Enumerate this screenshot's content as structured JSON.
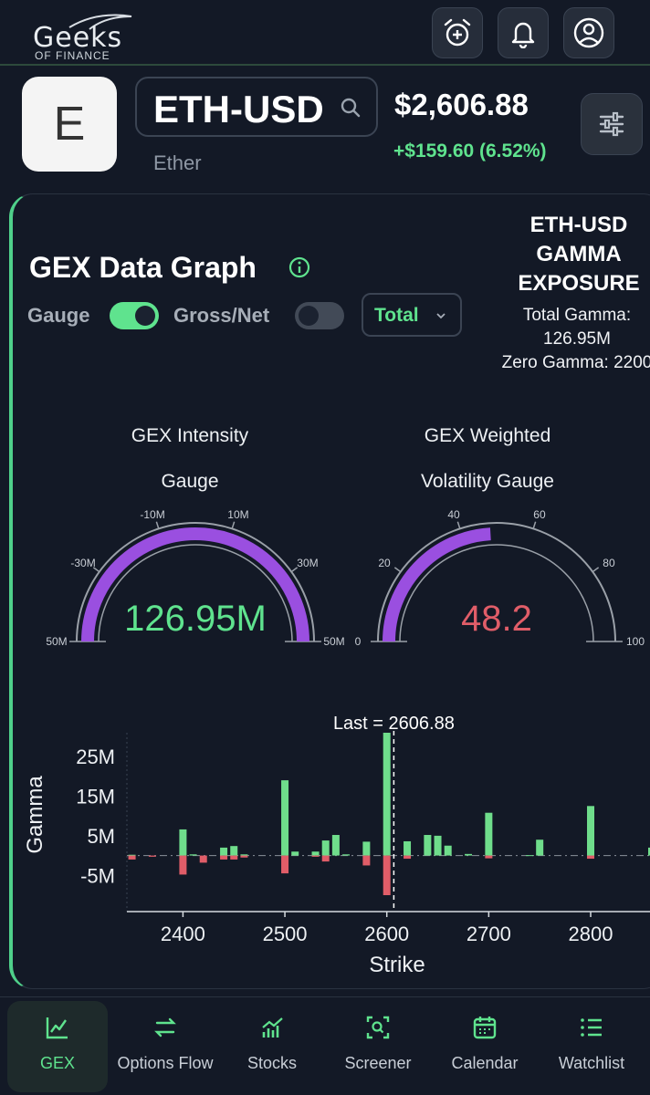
{
  "header": {
    "logo_text": "Geeks",
    "logo_sub": "OF FINANCE",
    "icons": [
      "alarm-add-icon",
      "bell-icon",
      "user-icon"
    ]
  },
  "ticker": {
    "logo_letter": "E",
    "symbol": "ETH-USD",
    "name": "Ether",
    "price": "$2,606.88",
    "change": "+$159.60 (6.52%)"
  },
  "gex": {
    "title": "GEX Data Graph",
    "gauge_label": "Gauge",
    "gauge_on": true,
    "gross_net_label": "Gross/Net",
    "gross_net_on": false,
    "select_value": "Total",
    "exposure_title_1": "ETH-USD",
    "exposure_title_2": "GAMMA",
    "exposure_title_3": "EXPOSURE",
    "total_gamma_label": "Total Gamma:",
    "total_gamma_value": "126.95M",
    "zero_gamma": "Zero Gamma: 2200"
  },
  "gauges": [
    {
      "title_1": "GEX Intensity",
      "title_2": "Gauge",
      "value_text": "126.95M",
      "value_color": "#5fe38e",
      "fill_fraction": 1.0,
      "ticks": [
        "50M",
        "-30M",
        "-10M",
        "10M",
        "30M",
        "50M"
      ]
    },
    {
      "title_1": "GEX Weighted",
      "title_2": "Volatility Gauge",
      "value_text": "48.2",
      "value_color": "#e05d68",
      "fill_fraction": 0.482,
      "ticks": [
        "0",
        "20",
        "40",
        "60",
        "80",
        "100"
      ]
    }
  ],
  "chart_data": {
    "type": "bar",
    "title": "",
    "xlabel": "Strike",
    "ylabel": "Gamma",
    "annotation": "Last = 2606.88",
    "last_price": 2606.88,
    "xlim": [
      2345,
      2860
    ],
    "ylim": [
      -10,
      31
    ],
    "x_ticks": [
      "2400",
      "2500",
      "2600",
      "2700",
      "2800"
    ],
    "y_ticks": [
      "25M",
      "15M",
      "5M",
      "-5M"
    ],
    "y_tick_values": [
      25,
      15,
      5,
      -5
    ],
    "colors": {
      "positive": "#6fdd8b",
      "negative": "#e05d68"
    },
    "series": [
      {
        "name": "Positive gamma",
        "x": [
          2350,
          2400,
          2410,
          2440,
          2450,
          2460,
          2500,
          2510,
          2530,
          2540,
          2550,
          2560,
          2580,
          2600,
          2620,
          2640,
          2650,
          2660,
          2680,
          2700,
          2740,
          2750,
          2800,
          2860
        ],
        "values": [
          0.2,
          6.6,
          0.3,
          2.0,
          2.4,
          0.3,
          19.0,
          1.0,
          1.0,
          3.8,
          5.2,
          0.3,
          3.5,
          31.0,
          3.6,
          5.2,
          5.0,
          2.5,
          0.4,
          10.8,
          0.1,
          4.0,
          12.5,
          2.0
        ]
      },
      {
        "name": "Negative gamma",
        "x": [
          2350,
          2370,
          2400,
          2420,
          2440,
          2450,
          2460,
          2500,
          2530,
          2540,
          2580,
          2600,
          2620,
          2700,
          2800
        ],
        "values": [
          -1.0,
          -0.3,
          -4.8,
          -1.8,
          -1.0,
          -1.0,
          -0.5,
          -4.5,
          -0.3,
          -1.5,
          -2.5,
          -10.0,
          -0.8,
          -0.7,
          -0.8
        ]
      }
    ]
  },
  "nav": [
    {
      "label": "GEX",
      "icon": "chart-line-icon",
      "active": true
    },
    {
      "label": "Options Flow",
      "icon": "arrows-exchange-icon",
      "active": false
    },
    {
      "label": "Stocks",
      "icon": "trending-bars-icon",
      "active": false
    },
    {
      "label": "Screener",
      "icon": "scan-search-icon",
      "active": false
    },
    {
      "label": "Calendar",
      "icon": "calendar-icon",
      "active": false
    },
    {
      "label": "Watchlist",
      "icon": "list-icon",
      "active": false
    }
  ]
}
